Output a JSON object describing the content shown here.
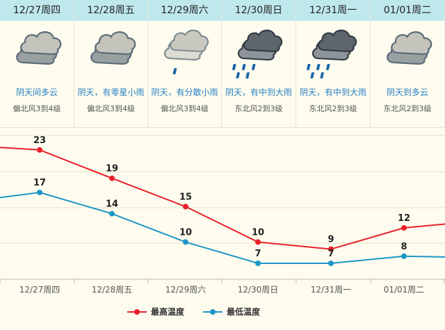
{
  "forecast": {
    "days": [
      {
        "date": "12/27周四",
        "desc": "阴天间多云",
        "wind": "偏北风3到4级",
        "icon": "cloud-icon"
      },
      {
        "date": "12/28周五",
        "desc": "阴天，有零星小雨",
        "wind": "偏北风3到4级",
        "icon": "cloud-icon"
      },
      {
        "date": "12/29周六",
        "desc": "阴天，有分散小雨",
        "wind": "偏北风3到4级",
        "icon": "light-rain-icon"
      },
      {
        "date": "12/30周日",
        "desc": "阴天，有中到大雨",
        "wind": "东北风2到3级",
        "icon": "heavy-rain-icon"
      },
      {
        "date": "12/31周一",
        "desc": "阴天，有中到大雨",
        "wind": "东北风2到3级",
        "icon": "heavy-rain-icon"
      },
      {
        "date": "01/01周二",
        "desc": "阴天到多云",
        "wind": "东北风2到3级",
        "icon": "cloud-icon"
      }
    ]
  },
  "colors": {
    "high": "#e8202a",
    "low": "#1d96c8",
    "header_bg": "#bfe8ec",
    "desc_text": "#2b7fc4"
  },
  "chart_data": {
    "type": "line",
    "categories": [
      "12/27周四",
      "12/28周五",
      "12/29周六",
      "12/30周日",
      "12/31周一",
      "01/01周二"
    ],
    "series": [
      {
        "name": "最高温度",
        "values": [
          23,
          19,
          15,
          10,
          9,
          12
        ]
      },
      {
        "name": "最低温度",
        "values": [
          17,
          14,
          10,
          7,
          7,
          8
        ]
      }
    ],
    "ylim": [
      5,
      25
    ],
    "grid": true,
    "legend_position": "bottom"
  }
}
